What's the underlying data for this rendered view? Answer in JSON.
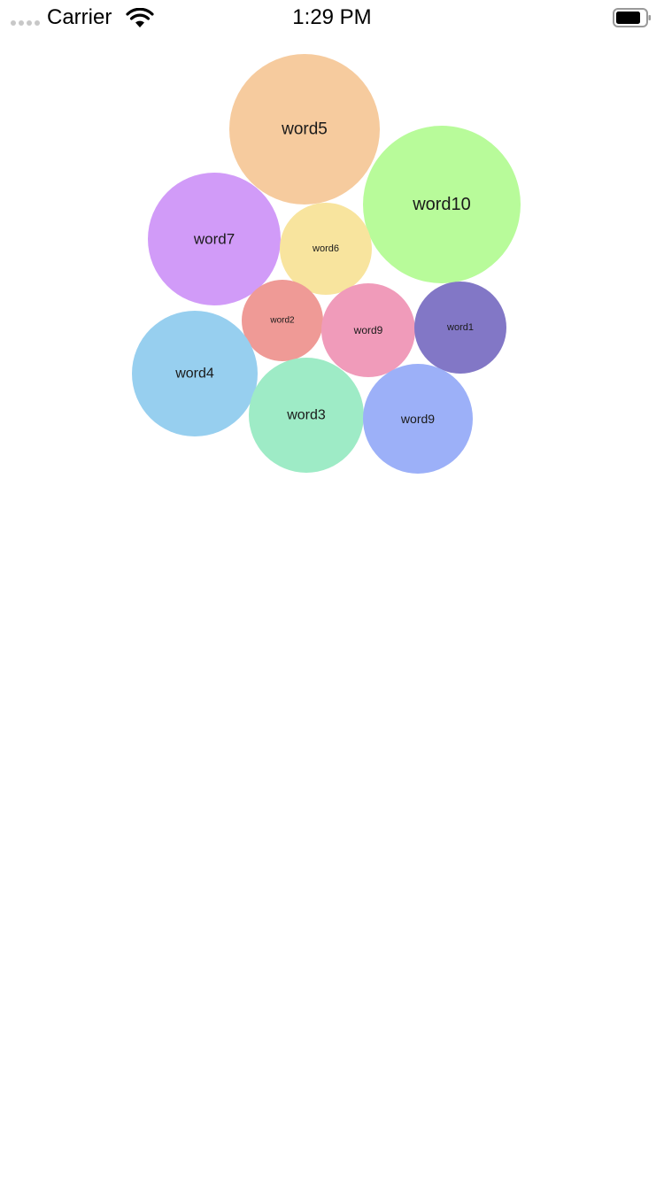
{
  "status_bar": {
    "carrier": "Carrier",
    "time": "1:29 PM",
    "signal_icon": "signal-dots-icon",
    "wifi_icon": "wifi-icon",
    "battery_icon": "battery-icon"
  },
  "bubbles": [
    {
      "label": "word5",
      "color": "#F6CB9E"
    },
    {
      "label": "word10",
      "color": "#B8FB9A"
    },
    {
      "label": "word7",
      "color": "#D19BF8"
    },
    {
      "label": "word6",
      "color": "#F8E49E"
    },
    {
      "label": "word2",
      "color": "#EF9A96"
    },
    {
      "label": "word9",
      "color": "#F09BBA"
    },
    {
      "label": "word1",
      "color": "#8277C6"
    },
    {
      "label": "word4",
      "color": "#97CFEF"
    },
    {
      "label": "word3",
      "color": "#9EEBC6"
    },
    {
      "label": "word9",
      "color": "#9CB0F8"
    }
  ]
}
